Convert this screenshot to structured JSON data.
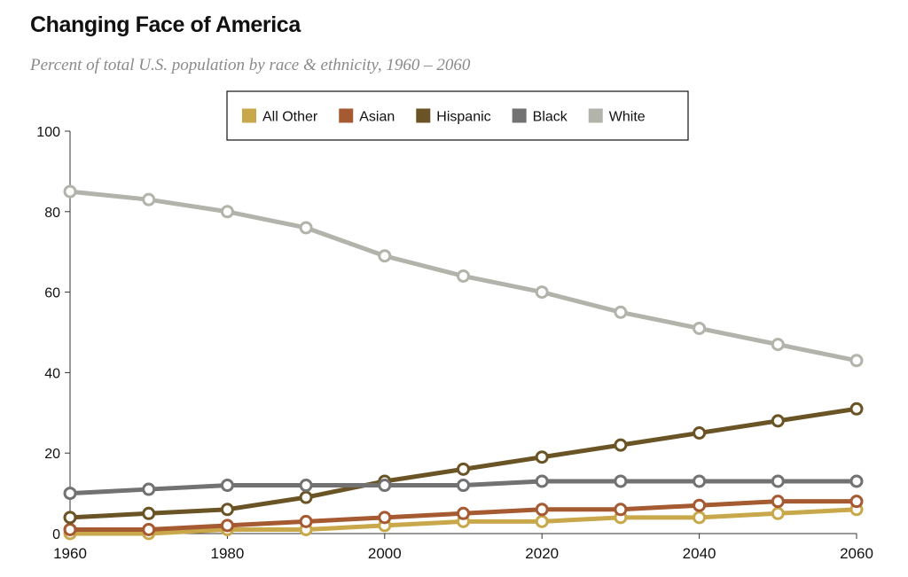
{
  "title": "Changing Face of America",
  "subtitle": "Percent of total U.S. population by race & ethnicity, 1960 – 2060",
  "chart_data": {
    "type": "line",
    "x": [
      1960,
      1970,
      1980,
      1990,
      2000,
      2010,
      2020,
      2030,
      2040,
      2050,
      2060
    ],
    "xlim": [
      1960,
      2060
    ],
    "ylim": [
      0,
      100
    ],
    "x_ticks": [
      1960,
      1980,
      2000,
      2020,
      2040,
      2060
    ],
    "y_ticks": [
      0,
      20,
      40,
      60,
      80,
      100
    ],
    "grid": false,
    "legend_position": "top",
    "legend": [
      "All Other",
      "Asian",
      "Hispanic",
      "Black",
      "White"
    ],
    "series": [
      {
        "name": "All Other",
        "color": "#c8a84b",
        "values": [
          0,
          0,
          1,
          1,
          2,
          3,
          3,
          4,
          4,
          5,
          6
        ]
      },
      {
        "name": "Asian",
        "color": "#a55a32",
        "values": [
          1,
          1,
          2,
          3,
          4,
          5,
          6,
          6,
          7,
          8,
          8
        ]
      },
      {
        "name": "Hispanic",
        "color": "#6a5426",
        "values": [
          4,
          5,
          6,
          9,
          13,
          16,
          19,
          22,
          25,
          28,
          31
        ]
      },
      {
        "name": "Black",
        "color": "#727272",
        "values": [
          10,
          11,
          12,
          12,
          12,
          12,
          13,
          13,
          13,
          13,
          13
        ]
      },
      {
        "name": "White",
        "color": "#b2b3aa",
        "values": [
          85,
          83,
          80,
          76,
          69,
          64,
          60,
          55,
          51,
          47,
          43
        ]
      }
    ]
  }
}
